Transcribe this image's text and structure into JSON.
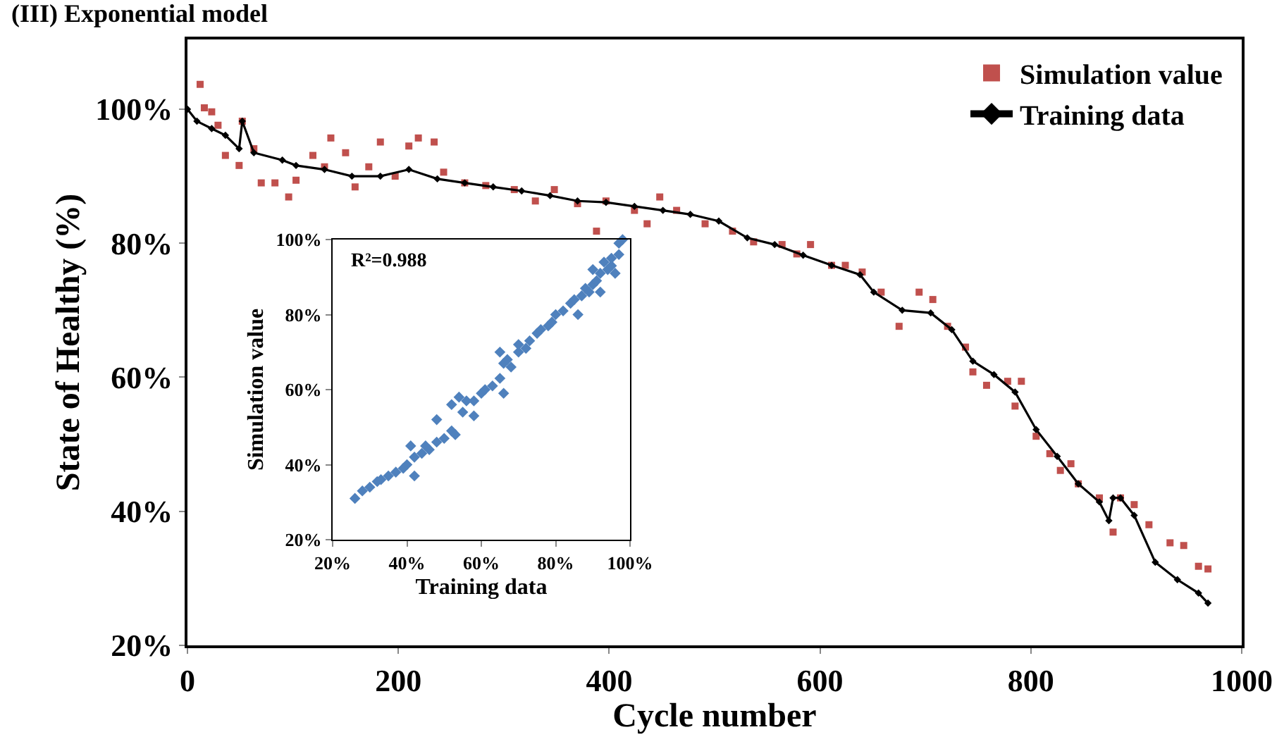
{
  "chart_data": [
    {
      "type": "line",
      "title": "(III) Exponential model",
      "xlabel": "Cycle number",
      "ylabel": "State of Healthy (%)",
      "xlim": [
        0,
        1000
      ],
      "xticks": [
        0,
        200,
        400,
        600,
        800,
        1000
      ],
      "ylim": [
        20,
        110.4
      ],
      "yticks": [
        {
          "value": 20,
          "label": "20%"
        },
        {
          "value": 40,
          "label": "40%"
        },
        {
          "value": 60,
          "label": "60%"
        },
        {
          "value": 80,
          "label": "80%"
        },
        {
          "value": 100,
          "label": "100%"
        }
      ],
      "grid": false,
      "legend": "top right",
      "series": [
        {
          "name": "Simulation value",
          "type": "scatter",
          "marker": "square",
          "color": "#c0504d",
          "x": [
            12,
            16,
            23,
            29,
            36,
            49,
            52,
            63,
            70,
            83,
            96,
            103,
            119,
            130,
            136,
            150,
            159,
            172,
            183,
            197,
            210,
            219,
            234,
            243,
            263,
            283,
            310,
            330,
            348,
            370,
            388,
            397,
            424,
            436,
            448,
            464,
            491,
            517,
            537,
            564,
            578,
            591,
            611,
            624,
            640,
            658,
            675,
            694,
            707,
            721,
            738,
            745,
            758,
            778,
            785,
            791,
            805,
            818,
            828,
            838,
            845,
            865,
            878,
            885,
            898,
            912,
            932,
            945,
            959,
            968
          ],
          "values": [
            103.7,
            100.2,
            99.6,
            97.6,
            93.1,
            91.6,
            98.2,
            94.1,
            89,
            89,
            86.9,
            89.4,
            93.1,
            91.4,
            95.7,
            93.5,
            88.4,
            91.4,
            95.1,
            90,
            94.5,
            95.7,
            95.1,
            90.6,
            89,
            88.6,
            88,
            86.3,
            88,
            85.9,
            81.8,
            86.3,
            84.9,
            82.9,
            86.9,
            84.9,
            82.9,
            81.8,
            80.2,
            79.8,
            78.4,
            79.8,
            76.7,
            76.7,
            75.7,
            72.7,
            67.6,
            72.7,
            71.6,
            67.6,
            64.5,
            60.8,
            58.8,
            59.4,
            55.7,
            59.4,
            51.2,
            48.6,
            46.1,
            47.1,
            44.1,
            42,
            36.9,
            42,
            41,
            38,
            35.3,
            34.9,
            31.8,
            31.4
          ]
        },
        {
          "name": "Training data",
          "marker": "diamond",
          "line_style": "solid",
          "color": "#000000",
          "x": [
            0,
            9,
            23,
            36,
            49,
            52,
            63,
            90,
            103,
            130,
            156,
            183,
            210,
            237,
            263,
            290,
            317,
            344,
            370,
            397,
            424,
            451,
            477,
            504,
            531,
            557,
            584,
            611,
            638,
            651,
            678,
            705,
            725,
            745,
            765,
            785,
            805,
            825,
            845,
            865,
            874,
            878,
            885,
            898,
            918,
            939,
            959,
            968
          ],
          "values": [
            100,
            98.2,
            97.1,
            96.1,
            94.1,
            98.2,
            93.5,
            92.4,
            91.6,
            91,
            90,
            90,
            91,
            89.6,
            89,
            88.4,
            87.8,
            87.1,
            86.3,
            86.1,
            85.5,
            84.9,
            84.3,
            83.3,
            80.8,
            79.8,
            78.2,
            76.7,
            75.3,
            72.7,
            70,
            69.6,
            67.1,
            62.4,
            60.4,
            57.8,
            52.2,
            48.2,
            44.1,
            41.4,
            38.6,
            42,
            42,
            39.4,
            32.4,
            29.8,
            27.8,
            26.3
          ]
        }
      ]
    },
    {
      "type": "scatter",
      "xlabel": "Training data",
      "ylabel": "Simulation value",
      "annotations": [
        "R²=0.988"
      ],
      "xlim": [
        20,
        100
      ],
      "xticks": [
        {
          "value": 20,
          "label": "20%"
        },
        {
          "value": 40,
          "label": "40%"
        },
        {
          "value": 60,
          "label": "60%"
        },
        {
          "value": 80,
          "label": "80%"
        },
        {
          "value": 100,
          "label": "100%"
        }
      ],
      "ylim": [
        20,
        100
      ],
      "yticks": [
        {
          "value": 20,
          "label": "20%"
        },
        {
          "value": 40,
          "label": "40%"
        },
        {
          "value": 60,
          "label": "60%"
        },
        {
          "value": 80,
          "label": "80%"
        },
        {
          "value": 100,
          "label": "100%"
        }
      ],
      "grid": false,
      "marker": "diamond",
      "series": [
        {
          "color": "#4f81bd",
          "x": [
            26,
            28,
            30,
            32,
            33,
            35,
            37,
            39,
            40,
            41,
            42,
            42,
            44,
            45,
            46,
            48,
            48,
            50,
            52,
            52,
            53,
            54,
            55,
            56,
            58,
            58,
            60,
            61,
            63,
            65,
            65,
            66,
            66,
            67,
            68,
            70,
            70,
            72,
            73,
            75,
            76,
            78,
            79,
            80,
            82,
            84,
            85,
            86,
            87,
            88,
            89,
            90,
            90,
            91,
            92,
            92,
            93,
            94,
            95,
            95,
            96,
            97,
            97,
            98
          ],
          "values": [
            31,
            33,
            34,
            35.5,
            36,
            37,
            38,
            39,
            40,
            45,
            42,
            37,
            43,
            45,
            44,
            46,
            52,
            47,
            49,
            56,
            48,
            58,
            54,
            57,
            57,
            53,
            59,
            60,
            61,
            63,
            70,
            67,
            59,
            68,
            66,
            70,
            72,
            71,
            73,
            75,
            76,
            77,
            78,
            80,
            81,
            83,
            84,
            80,
            85,
            87,
            86,
            88,
            92,
            89,
            91,
            86,
            94,
            92,
            93,
            95,
            91,
            96,
            99,
            100
          ]
        }
      ]
    }
  ]
}
